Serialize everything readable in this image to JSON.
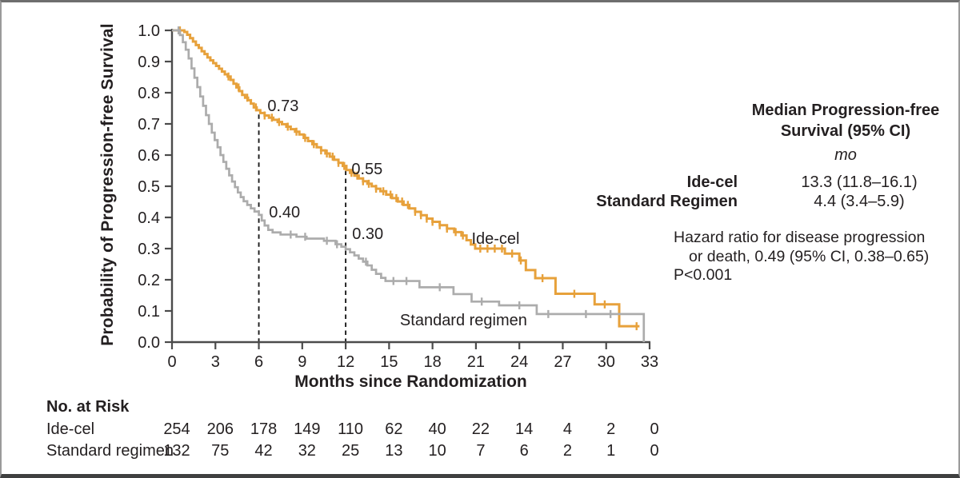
{
  "colors": {
    "ide_cel": "#E7A13B",
    "standard": "#ACACAC",
    "axis": "#4b4b4b",
    "text": "#231f20",
    "reference_line": "#1a1a1a",
    "background": "#ffffff"
  },
  "chart_data": {
    "type": "line",
    "subtype": "kaplan_meier_step",
    "title": "",
    "xlabel": "Months since Randomization",
    "ylabel": "Probability of Progression-free Survival",
    "xlim": [
      0,
      33
    ],
    "ylim": [
      0.0,
      1.0
    ],
    "grid": false,
    "x_ticks": [
      0,
      3,
      6,
      9,
      12,
      15,
      18,
      21,
      24,
      27,
      30,
      33
    ],
    "y_ticks": [
      {
        "label": "0.0",
        "value": 0.0
      },
      {
        "label": "0.1",
        "value": 0.1
      },
      {
        "label": "0.2",
        "value": 0.2
      },
      {
        "label": "0.3",
        "value": 0.3
      },
      {
        "label": "0.4",
        "value": 0.4
      },
      {
        "label": "0.5",
        "value": 0.5
      },
      {
        "label": "0.6",
        "value": 0.6
      },
      {
        "label": "0.7",
        "value": 0.7
      },
      {
        "label": "0.8",
        "value": 0.8
      },
      {
        "label": "0.9",
        "value": 0.9
      },
      {
        "label": "1.0",
        "value": 1.0
      }
    ],
    "reference_lines": [
      {
        "x": 6,
        "y_top": 0.73
      },
      {
        "x": 12,
        "y_top": 0.55
      }
    ],
    "annotations": [
      {
        "text": "0.73",
        "x": 6.6,
        "y": 0.741
      },
      {
        "text": "0.55",
        "x": 12.4,
        "y": 0.538
      },
      {
        "text": "0.40",
        "x": 6.7,
        "y": 0.4
      },
      {
        "text": "0.30",
        "x": 12.45,
        "y": 0.331
      }
    ],
    "series": [
      {
        "name": "Ide-cel",
        "color": "#E7A13B",
        "stroke_width": 3,
        "label_pos": {
          "x": 20.7,
          "y": 0.315
        },
        "points": [
          [
            0,
            1.0
          ],
          [
            0.85,
            0.995
          ],
          [
            1.05,
            0.986
          ],
          [
            1.25,
            0.975
          ],
          [
            1.45,
            0.964
          ],
          [
            1.65,
            0.953
          ],
          [
            1.85,
            0.944
          ],
          [
            2.05,
            0.933
          ],
          [
            2.25,
            0.924
          ],
          [
            2.45,
            0.913
          ],
          [
            2.65,
            0.904
          ],
          [
            2.85,
            0.895
          ],
          [
            3.05,
            0.886
          ],
          [
            3.25,
            0.877
          ],
          [
            3.45,
            0.868
          ],
          [
            3.65,
            0.859
          ],
          [
            3.85,
            0.852
          ],
          [
            4.05,
            0.841
          ],
          [
            4.25,
            0.829
          ],
          [
            4.45,
            0.817
          ],
          [
            4.65,
            0.805
          ],
          [
            4.85,
            0.793
          ],
          [
            5.05,
            0.784
          ],
          [
            5.25,
            0.776
          ],
          [
            5.45,
            0.765
          ],
          [
            5.65,
            0.753
          ],
          [
            5.85,
            0.744
          ],
          [
            6.1,
            0.735
          ],
          [
            6.4,
            0.727
          ],
          [
            6.7,
            0.72
          ],
          [
            7.0,
            0.713
          ],
          [
            7.3,
            0.706
          ],
          [
            7.6,
            0.699
          ],
          [
            7.9,
            0.691
          ],
          [
            8.2,
            0.683
          ],
          [
            8.5,
            0.675
          ],
          [
            8.8,
            0.666
          ],
          [
            9.1,
            0.655
          ],
          [
            9.4,
            0.645
          ],
          [
            9.7,
            0.635
          ],
          [
            10.0,
            0.625
          ],
          [
            10.3,
            0.615
          ],
          [
            10.6,
            0.605
          ],
          [
            10.9,
            0.595
          ],
          [
            11.2,
            0.585
          ],
          [
            11.5,
            0.575
          ],
          [
            11.8,
            0.565
          ],
          [
            12.05,
            0.552
          ],
          [
            12.3,
            0.543
          ],
          [
            12.6,
            0.534
          ],
          [
            12.9,
            0.525
          ],
          [
            13.2,
            0.516
          ],
          [
            13.5,
            0.508
          ],
          [
            13.8,
            0.5
          ],
          [
            14.1,
            0.492
          ],
          [
            14.4,
            0.484
          ],
          [
            14.8,
            0.473
          ],
          [
            15.2,
            0.462
          ],
          [
            15.6,
            0.451
          ],
          [
            16.0,
            0.44
          ],
          [
            16.4,
            0.429
          ],
          [
            16.8,
            0.418
          ],
          [
            17.2,
            0.407
          ],
          [
            17.6,
            0.396
          ],
          [
            18.0,
            0.386
          ],
          [
            18.5,
            0.375
          ],
          [
            19.0,
            0.364
          ],
          [
            19.5,
            0.353
          ],
          [
            20.0,
            0.342
          ],
          [
            20.35,
            0.327
          ],
          [
            20.65,
            0.313
          ],
          [
            20.95,
            0.3
          ],
          [
            23.0,
            0.284
          ],
          [
            24.0,
            0.262
          ],
          [
            24.45,
            0.231
          ],
          [
            25.1,
            0.205
          ],
          [
            26.5,
            0.155
          ],
          [
            29.2,
            0.121
          ],
          [
            30.9,
            0.051
          ],
          [
            32.3,
            0.051
          ]
        ],
        "censor_ticks": [
          0.55,
          3.9,
          4.6,
          5.2,
          5.8,
          6.4,
          6.9,
          7.4,
          8.0,
          8.6,
          9.2,
          9.8,
          10.3,
          10.7,
          11.1,
          11.5,
          11.9,
          12.4,
          12.8,
          13.2,
          13.6,
          14.1,
          14.6,
          15.1,
          15.5,
          15.9,
          16.3,
          16.8,
          17.2,
          17.6,
          18.0,
          18.5,
          19.0,
          19.6,
          20.1,
          21.3,
          21.8,
          22.3,
          22.8,
          23.5,
          24.1,
          25.6,
          27.8,
          29.9,
          32.1
        ]
      },
      {
        "name": "Standard regimen",
        "color": "#ACACAC",
        "stroke_width": 2.7,
        "label_pos": {
          "x": 15.75,
          "y": 0.054
        },
        "points": [
          [
            0,
            1.0
          ],
          [
            0.55,
            0.985
          ],
          [
            0.75,
            0.962
          ],
          [
            0.95,
            0.938
          ],
          [
            1.15,
            0.91
          ],
          [
            1.35,
            0.878
          ],
          [
            1.55,
            0.848
          ],
          [
            1.75,
            0.818
          ],
          [
            1.95,
            0.788
          ],
          [
            2.15,
            0.758
          ],
          [
            2.35,
            0.728
          ],
          [
            2.55,
            0.7
          ],
          [
            2.75,
            0.672
          ],
          [
            2.95,
            0.648
          ],
          [
            3.15,
            0.625
          ],
          [
            3.35,
            0.6
          ],
          [
            3.55,
            0.578
          ],
          [
            3.75,
            0.556
          ],
          [
            3.95,
            0.535
          ],
          [
            4.15,
            0.515
          ],
          [
            4.35,
            0.497
          ],
          [
            4.55,
            0.48
          ],
          [
            4.75,
            0.465
          ],
          [
            4.95,
            0.452
          ],
          [
            5.2,
            0.44
          ],
          [
            5.45,
            0.429
          ],
          [
            5.7,
            0.419
          ],
          [
            6.0,
            0.408
          ],
          [
            6.2,
            0.39
          ],
          [
            6.4,
            0.374
          ],
          [
            6.65,
            0.36
          ],
          [
            6.95,
            0.352
          ],
          [
            7.5,
            0.345
          ],
          [
            8.6,
            0.338
          ],
          [
            9.3,
            0.332
          ],
          [
            10.5,
            0.325
          ],
          [
            11.3,
            0.314
          ],
          [
            11.7,
            0.306
          ],
          [
            12.0,
            0.298
          ],
          [
            12.3,
            0.288
          ],
          [
            12.6,
            0.278
          ],
          [
            12.9,
            0.268
          ],
          [
            13.2,
            0.258
          ],
          [
            13.5,
            0.246
          ],
          [
            13.8,
            0.232
          ],
          [
            14.1,
            0.219
          ],
          [
            14.45,
            0.206
          ],
          [
            14.75,
            0.196
          ],
          [
            17.1,
            0.176
          ],
          [
            19.45,
            0.154
          ],
          [
            20.7,
            0.13
          ],
          [
            22.6,
            0.118
          ],
          [
            25.2,
            0.09
          ],
          [
            32.6,
            0.0
          ]
        ],
        "censor_ticks": [
          0.45,
          8.2,
          9.2,
          10.7,
          11.4,
          13.4,
          15.3,
          16.2,
          18.5,
          21.4,
          24.0,
          26.0,
          28.6,
          30.3
        ]
      }
    ],
    "at_risk": {
      "title": "No. at Risk",
      "rows": [
        {
          "label": "Ide-cel",
          "values": [
            254,
            206,
            178,
            149,
            110,
            62,
            40,
            22,
            14,
            4,
            2,
            0
          ]
        },
        {
          "label": "Standard regimen",
          "values": [
            132,
            75,
            42,
            32,
            25,
            13,
            10,
            7,
            6,
            2,
            1,
            0
          ]
        }
      ]
    }
  },
  "stats_panel": {
    "title_line1": "Median Progression-free",
    "title_line2": "Survival (95% CI)",
    "unit": "mo",
    "rows": [
      {
        "label": "Ide-cel",
        "value": "13.3 (11.8–16.1)"
      },
      {
        "label": "Standard Regimen",
        "value": "4.4 (3.4–5.9)"
      }
    ],
    "hazard_line1": "Hazard ratio for disease progression",
    "hazard_line2": "or death, 0.49 (95% CI, 0.38–0.65)",
    "p_value": "P<0.001"
  }
}
